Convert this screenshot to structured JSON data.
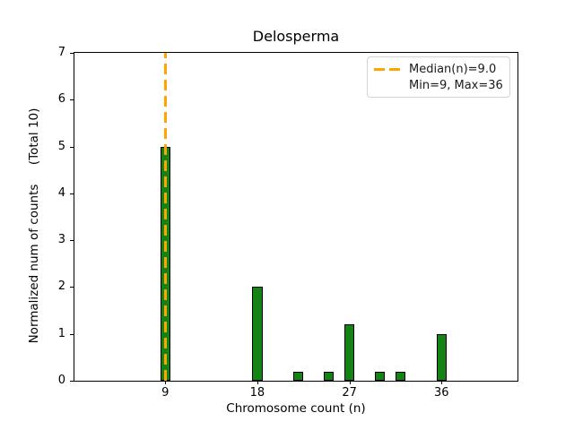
{
  "title": "Delosperma",
  "xlabel": "Chromosome count (n)",
  "ylabel": "Normalized num of counts     (Total 10)",
  "legend": {
    "median_label": "Median(n)=9.0",
    "minmax_label": "Min=9, Max=36"
  },
  "chart_data": {
    "type": "bar",
    "title": "Delosperma",
    "xlabel": "Chromosome count (n)",
    "ylabel": "Normalized num of counts (Total 10)",
    "x": [
      9,
      18,
      22,
      25,
      27,
      30,
      32,
      36
    ],
    "values": [
      5.0,
      2.0,
      0.2,
      0.2,
      1.2,
      0.2,
      0.2,
      1.0
    ],
    "bar_width": 1,
    "xlim": [
      0.12,
      43.43
    ],
    "ylim": [
      0,
      7
    ],
    "xticks": [
      9,
      18,
      27,
      36
    ],
    "yticks": [
      0,
      1,
      2,
      3,
      4,
      5,
      6,
      7
    ],
    "median_x": 9,
    "min_n": 9,
    "max_n": 36,
    "total": 10,
    "grid": false,
    "legend_position": "upper right",
    "colors": {
      "bar_fill": "#148214",
      "bar_edge": "#000000",
      "median_line": "#FFA500",
      "spine": "#000000"
    }
  }
}
